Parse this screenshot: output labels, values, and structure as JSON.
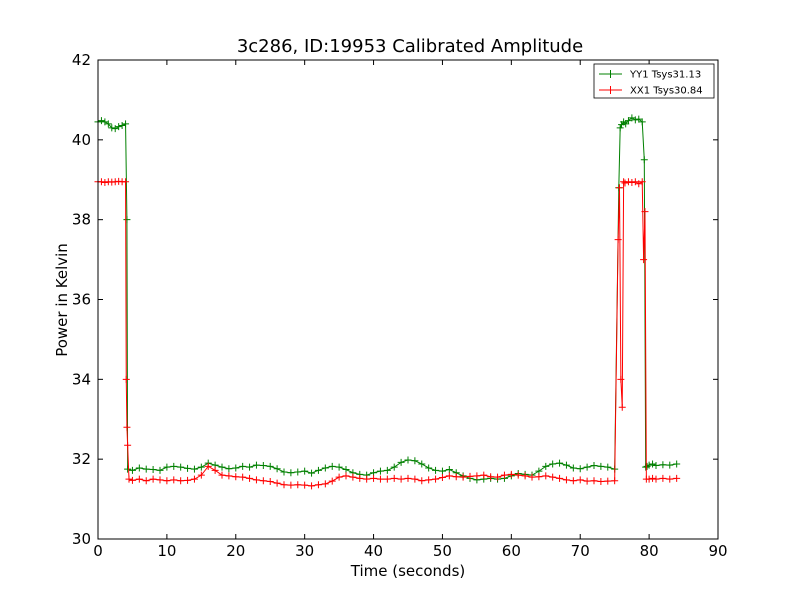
{
  "chart_data": {
    "type": "line",
    "title": "3c286, ID:19953 Calibrated Amplitude",
    "xlabel": "Time (seconds)",
    "ylabel": "Power in Kelvin",
    "xlim": [
      0,
      90
    ],
    "ylim": [
      30,
      42
    ],
    "xticks": [
      "0",
      "10",
      "20",
      "30",
      "40",
      "50",
      "60",
      "70",
      "80",
      "90"
    ],
    "yticks": [
      "30",
      "32",
      "34",
      "36",
      "38",
      "40",
      "42"
    ],
    "grid": false,
    "legend_position": "top-right",
    "series": [
      {
        "name": "YY1 Tsys31.13",
        "color": "#008000",
        "marker": "+",
        "x": [
          0.0,
          0.5,
          1.0,
          1.5,
          2.0,
          2.5,
          3.0,
          3.5,
          4.0,
          4.2,
          4.3,
          5.0,
          6.0,
          7.0,
          8.0,
          9.0,
          10.0,
          11.0,
          12.0,
          13.0,
          14.0,
          15.0,
          16.0,
          17.0,
          18.0,
          19.0,
          20.0,
          21.0,
          22.0,
          23.0,
          24.0,
          25.0,
          26.0,
          27.0,
          28.0,
          29.0,
          30.0,
          31.0,
          32.0,
          33.0,
          34.0,
          35.0,
          36.0,
          37.0,
          38.0,
          39.0,
          40.0,
          41.0,
          42.0,
          43.0,
          44.0,
          45.0,
          46.0,
          47.0,
          48.0,
          49.0,
          50.0,
          51.0,
          52.0,
          53.0,
          54.0,
          55.0,
          56.0,
          57.0,
          58.0,
          59.0,
          60.0,
          61.0,
          62.0,
          63.0,
          64.0,
          65.0,
          66.0,
          67.0,
          68.0,
          69.0,
          70.0,
          71.0,
          72.0,
          73.0,
          74.0,
          75.0,
          75.6,
          75.8,
          76.0,
          76.3,
          76.6,
          77.0,
          77.5,
          78.0,
          78.5,
          79.0,
          79.3,
          79.5,
          79.7,
          80.0,
          80.5,
          81.0,
          82.0,
          83.0,
          84.0
        ],
        "values": [
          40.45,
          40.48,
          40.45,
          40.4,
          40.3,
          40.28,
          40.33,
          40.36,
          40.4,
          38.0,
          31.75,
          31.72,
          31.78,
          31.75,
          31.74,
          31.72,
          31.8,
          31.82,
          31.8,
          31.77,
          31.75,
          31.8,
          31.9,
          31.85,
          31.8,
          31.76,
          31.78,
          31.82,
          31.8,
          31.85,
          31.84,
          31.82,
          31.76,
          31.68,
          31.66,
          31.68,
          31.7,
          31.65,
          31.72,
          31.78,
          31.82,
          31.8,
          31.74,
          31.66,
          31.62,
          31.6,
          31.66,
          31.7,
          31.72,
          31.8,
          31.92,
          31.98,
          31.96,
          31.88,
          31.78,
          31.72,
          31.7,
          31.74,
          31.66,
          31.58,
          31.52,
          31.48,
          31.5,
          31.52,
          31.5,
          31.52,
          31.58,
          31.64,
          31.62,
          31.6,
          31.7,
          31.82,
          31.88,
          31.9,
          31.85,
          31.78,
          31.76,
          31.8,
          31.84,
          31.82,
          31.8,
          31.75,
          38.8,
          40.3,
          40.38,
          40.45,
          40.4,
          40.48,
          40.55,
          40.5,
          40.52,
          40.45,
          39.5,
          31.8,
          31.82,
          31.85,
          31.88,
          31.84,
          31.86,
          31.85,
          31.88
        ]
      },
      {
        "name": "XX1 Tsys30.84",
        "color": "#ff0000",
        "marker": "+",
        "x": [
          0.0,
          0.5,
          1.0,
          1.5,
          2.0,
          2.5,
          3.0,
          3.5,
          4.0,
          4.1,
          4.2,
          4.3,
          4.5,
          5.0,
          6.0,
          7.0,
          8.0,
          9.0,
          10.0,
          11.0,
          12.0,
          13.0,
          14.0,
          15.0,
          16.0,
          17.0,
          18.0,
          19.0,
          20.0,
          21.0,
          22.0,
          23.0,
          24.0,
          25.0,
          26.0,
          27.0,
          28.0,
          29.0,
          30.0,
          31.0,
          32.0,
          33.0,
          34.0,
          35.0,
          36.0,
          37.0,
          38.0,
          39.0,
          40.0,
          41.0,
          42.0,
          43.0,
          44.0,
          45.0,
          46.0,
          47.0,
          48.0,
          49.0,
          50.0,
          51.0,
          52.0,
          53.0,
          54.0,
          55.0,
          56.0,
          57.0,
          58.0,
          59.0,
          60.0,
          61.0,
          62.0,
          63.0,
          64.0,
          65.0,
          66.0,
          67.0,
          68.0,
          69.0,
          70.0,
          71.0,
          72.0,
          73.0,
          74.0,
          75.0,
          75.5,
          75.7,
          75.9,
          76.1,
          76.3,
          76.5,
          77.0,
          77.5,
          78.0,
          78.5,
          79.0,
          79.2,
          79.4,
          79.6,
          80.0,
          80.5,
          81.0,
          82.0,
          83.0,
          84.0
        ],
        "values": [
          38.95,
          38.95,
          38.93,
          38.95,
          38.94,
          38.95,
          38.96,
          38.95,
          38.95,
          34.0,
          32.8,
          32.35,
          31.5,
          31.47,
          31.5,
          31.46,
          31.5,
          31.48,
          31.46,
          31.48,
          31.46,
          31.47,
          31.5,
          31.6,
          31.82,
          31.72,
          31.6,
          31.58,
          31.56,
          31.55,
          31.52,
          31.48,
          31.46,
          31.44,
          31.4,
          31.36,
          31.35,
          31.36,
          31.35,
          31.33,
          31.36,
          31.38,
          31.45,
          31.55,
          31.58,
          31.55,
          31.52,
          31.5,
          31.52,
          31.5,
          31.5,
          31.52,
          31.5,
          31.52,
          31.5,
          31.46,
          31.48,
          31.5,
          31.54,
          31.58,
          31.56,
          31.55,
          31.57,
          31.58,
          31.6,
          31.56,
          31.55,
          31.6,
          31.62,
          31.6,
          31.58,
          31.55,
          31.56,
          31.58,
          31.55,
          31.52,
          31.48,
          31.46,
          31.48,
          31.45,
          31.46,
          31.44,
          31.45,
          31.46,
          37.5,
          38.8,
          34.0,
          33.3,
          38.95,
          38.92,
          38.95,
          38.93,
          38.95,
          38.9,
          38.95,
          37.0,
          38.2,
          31.5,
          31.5,
          31.52,
          31.5,
          31.52,
          31.5,
          31.52
        ]
      }
    ]
  }
}
